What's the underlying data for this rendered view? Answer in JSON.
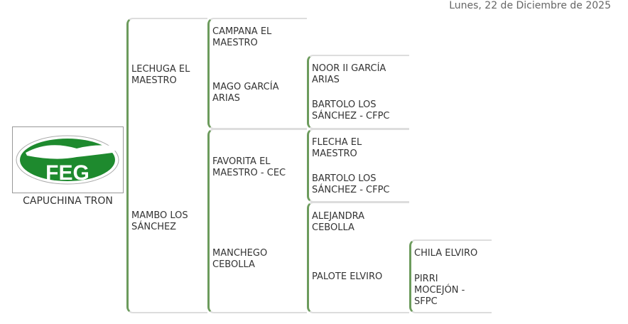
{
  "date": "Lunes, 22 de Diciembre de 2025",
  "logo": {
    "text": "FEG",
    "color": "#1e8a2e"
  },
  "subject": "CAPUCHINA TRON",
  "accent": "#6c9b5c",
  "pedigree": {
    "sire": "LECHUGA EL MAESTRO",
    "dam": "MAMBO LOS SÁNCHEZ",
    "ss": "CAMPANA EL MAESTRO",
    "sd": "MAGO GARCÍA ARIAS",
    "ds": "FAVORITA EL MAESTRO - CEC",
    "dd": "MANCHEGO CEBOLLA",
    "sds": "NOOR II GARCÍA ARIAS",
    "sdd": "BARTOLO LOS SÁNCHEZ - CFPC",
    "dss": "FLECHA EL MAESTRO",
    "dsd": "BARTOLO LOS SÁNCHEZ - CFPC",
    "dds": "ALEJANDRA CEBOLLA",
    "ddd": "PALOTE ELVIRO",
    "ddds": "CHILA ELVIRO",
    "dddd": "PIRRI MOCEJÓN - SFPC"
  }
}
